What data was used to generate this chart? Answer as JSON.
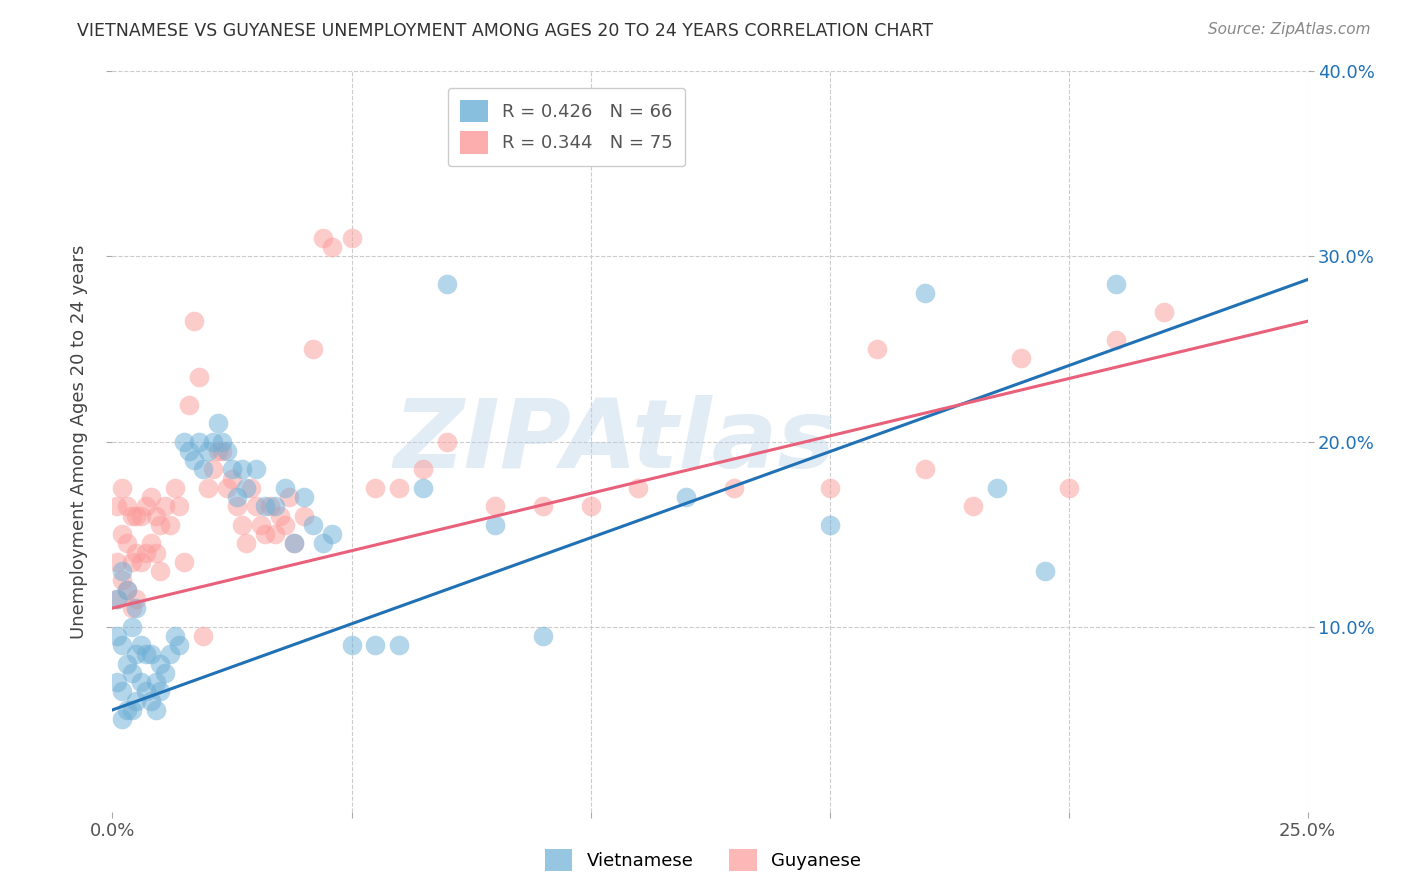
{
  "title": "VIETNAMESE VS GUYANESE UNEMPLOYMENT AMONG AGES 20 TO 24 YEARS CORRELATION CHART",
  "source": "Source: ZipAtlas.com",
  "ylabel": "Unemployment Among Ages 20 to 24 years",
  "xlim": [
    0.0,
    0.25
  ],
  "ylim": [
    0.0,
    0.4
  ],
  "xticks": [
    0.0,
    0.05,
    0.1,
    0.15,
    0.2,
    0.25
  ],
  "xtick_labels": [
    "0.0%",
    "",
    "",
    "",
    "",
    "25.0%"
  ],
  "yticks": [
    0.1,
    0.2,
    0.3,
    0.4
  ],
  "ytick_labels": [
    "10.0%",
    "20.0%",
    "30.0%",
    "40.0%"
  ],
  "vietnamese_color": "#6baed6",
  "guyanese_color": "#fb9a99",
  "vietnamese_line_color": "#2171b5",
  "guyanese_line_color": "#e8607a",
  "legend_text_blue": "R = 0.426   N = 66",
  "legend_text_pink": "R = 0.344   N = 75",
  "watermark": "ZIPAtlas",
  "background_color": "#ffffff",
  "grid_color": "#cccccc",
  "vietnamese_x": [
    0.001,
    0.001,
    0.001,
    0.002,
    0.002,
    0.002,
    0.002,
    0.003,
    0.003,
    0.003,
    0.004,
    0.004,
    0.004,
    0.005,
    0.005,
    0.005,
    0.006,
    0.006,
    0.007,
    0.007,
    0.008,
    0.008,
    0.009,
    0.009,
    0.01,
    0.01,
    0.011,
    0.012,
    0.013,
    0.014,
    0.015,
    0.016,
    0.017,
    0.018,
    0.019,
    0.02,
    0.021,
    0.022,
    0.023,
    0.024,
    0.025,
    0.026,
    0.027,
    0.028,
    0.03,
    0.032,
    0.034,
    0.036,
    0.038,
    0.04,
    0.042,
    0.044,
    0.046,
    0.05,
    0.055,
    0.06,
    0.065,
    0.07,
    0.08,
    0.09,
    0.12,
    0.15,
    0.17,
    0.185,
    0.195,
    0.21
  ],
  "vietnamese_y": [
    0.115,
    0.095,
    0.07,
    0.13,
    0.09,
    0.065,
    0.05,
    0.12,
    0.08,
    0.055,
    0.1,
    0.075,
    0.055,
    0.11,
    0.085,
    0.06,
    0.09,
    0.07,
    0.085,
    0.065,
    0.085,
    0.06,
    0.07,
    0.055,
    0.08,
    0.065,
    0.075,
    0.085,
    0.095,
    0.09,
    0.2,
    0.195,
    0.19,
    0.2,
    0.185,
    0.195,
    0.2,
    0.21,
    0.2,
    0.195,
    0.185,
    0.17,
    0.185,
    0.175,
    0.185,
    0.165,
    0.165,
    0.175,
    0.145,
    0.17,
    0.155,
    0.145,
    0.15,
    0.09,
    0.09,
    0.09,
    0.175,
    0.285,
    0.155,
    0.095,
    0.17,
    0.155,
    0.28,
    0.175,
    0.13,
    0.285
  ],
  "guyanese_x": [
    0.001,
    0.001,
    0.001,
    0.002,
    0.002,
    0.002,
    0.003,
    0.003,
    0.003,
    0.004,
    0.004,
    0.004,
    0.005,
    0.005,
    0.005,
    0.006,
    0.006,
    0.007,
    0.007,
    0.008,
    0.008,
    0.009,
    0.009,
    0.01,
    0.01,
    0.011,
    0.012,
    0.013,
    0.014,
    0.015,
    0.016,
    0.017,
    0.018,
    0.019,
    0.02,
    0.021,
    0.022,
    0.023,
    0.024,
    0.025,
    0.026,
    0.027,
    0.028,
    0.029,
    0.03,
    0.031,
    0.032,
    0.033,
    0.034,
    0.035,
    0.036,
    0.037,
    0.038,
    0.04,
    0.042,
    0.044,
    0.046,
    0.05,
    0.055,
    0.06,
    0.065,
    0.07,
    0.08,
    0.09,
    0.1,
    0.11,
    0.13,
    0.15,
    0.16,
    0.17,
    0.18,
    0.19,
    0.2,
    0.21,
    0.22
  ],
  "guyanese_y": [
    0.165,
    0.135,
    0.115,
    0.175,
    0.15,
    0.125,
    0.165,
    0.145,
    0.12,
    0.16,
    0.135,
    0.11,
    0.16,
    0.14,
    0.115,
    0.16,
    0.135,
    0.165,
    0.14,
    0.17,
    0.145,
    0.16,
    0.14,
    0.155,
    0.13,
    0.165,
    0.155,
    0.175,
    0.165,
    0.135,
    0.22,
    0.265,
    0.235,
    0.095,
    0.175,
    0.185,
    0.195,
    0.195,
    0.175,
    0.18,
    0.165,
    0.155,
    0.145,
    0.175,
    0.165,
    0.155,
    0.15,
    0.165,
    0.15,
    0.16,
    0.155,
    0.17,
    0.145,
    0.16,
    0.25,
    0.31,
    0.305,
    0.31,
    0.175,
    0.175,
    0.185,
    0.2,
    0.165,
    0.165,
    0.165,
    0.175,
    0.175,
    0.175,
    0.25,
    0.185,
    0.165,
    0.245,
    0.175,
    0.255,
    0.27
  ]
}
